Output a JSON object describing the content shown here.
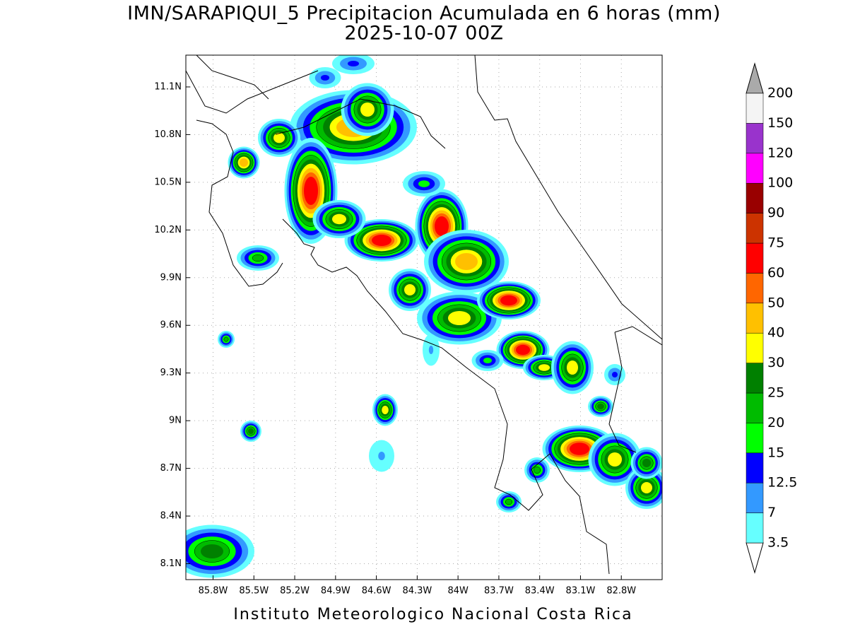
{
  "map": {
    "title": "IMN/SARAPIQUI_5 Precipitacion Acumulada en 6 horas (mm)",
    "subtitle": "2025-10-07 00Z",
    "footer": "Instituto Meteorologico Nacional Costa Rica",
    "lonlim": [
      -86,
      -82.5
    ],
    "latlim": [
      8,
      11.3
    ],
    "lon_ticks": [
      {
        "value": -85.8,
        "label": "85.8W"
      },
      {
        "value": -85.5,
        "label": "85.5W"
      },
      {
        "value": -85.2,
        "label": "85.2W"
      },
      {
        "value": -84.9,
        "label": "84.9W"
      },
      {
        "value": -84.6,
        "label": "84.6W"
      },
      {
        "value": -84.3,
        "label": "84.3W"
      },
      {
        "value": -84,
        "label": "84W"
      },
      {
        "value": -83.7,
        "label": "83.7W"
      },
      {
        "value": -83.4,
        "label": "83.4W"
      },
      {
        "value": -83.1,
        "label": "83.1W"
      },
      {
        "value": -82.8,
        "label": "82.8W"
      }
    ],
    "lat_ticks": [
      {
        "value": 8.1,
        "label": "8.1N"
      },
      {
        "value": 8.4,
        "label": "8.4N"
      },
      {
        "value": 8.7,
        "label": "8.7N"
      },
      {
        "value": 9,
        "label": "9N"
      },
      {
        "value": 9.3,
        "label": "9.3N"
      },
      {
        "value": 9.6,
        "label": "9.6N"
      },
      {
        "value": 9.9,
        "label": "9.9N"
      },
      {
        "value": 10.2,
        "label": "10.2N"
      },
      {
        "value": 10.5,
        "label": "10.5N"
      },
      {
        "value": 10.8,
        "label": "10.8N"
      },
      {
        "value": 11.1,
        "label": "11.1N"
      }
    ],
    "grid": true,
    "colorbar": {
      "levels": [
        3.5,
        7,
        12.5,
        15,
        20,
        25,
        30,
        40,
        50,
        60,
        75,
        90,
        100,
        120,
        150,
        200
      ],
      "colors": [
        "#66ffff",
        "#3399ff",
        "#0000ff",
        "#00ff00",
        "#00bb00",
        "#008000",
        "#ffff00",
        "#ffc000",
        "#ff6600",
        "#ff0000",
        "#cc3300",
        "#990000",
        "#ff00ff",
        "#9933cc",
        "#f4f4f4"
      ],
      "under_color": "#ffffff",
      "over_color": "#aaaaaa"
    }
  }
}
